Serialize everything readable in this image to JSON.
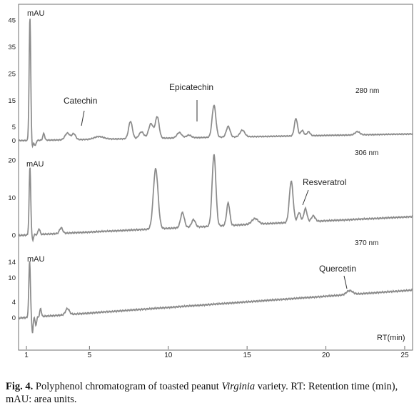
{
  "chart_data": {
    "type": "line",
    "x_axis": {
      "label": "RT(min)",
      "range": [
        0.5,
        25.5
      ],
      "ticks": [
        1,
        5,
        10,
        15,
        20,
        25
      ]
    },
    "colors": {
      "trace": "#8a8a8a",
      "text": "#222222",
      "frame": "#6f6f6f"
    },
    "panels": [
      {
        "wavelength": "280 nm",
        "ylabel": "mAU",
        "yticks": [
          0,
          5,
          15,
          25,
          35,
          45
        ],
        "ylim": [
          -3,
          50
        ],
        "baseline": {
          "start": 0,
          "end": 2.5
        },
        "peaks": [
          {
            "rt": 1.22,
            "h": 46,
            "w": 0.05
          },
          {
            "rt": 1.38,
            "h": -2.5,
            "w": 0.04
          },
          {
            "rt": 1.55,
            "h": -2,
            "w": 0.06
          },
          {
            "rt": 2.1,
            "h": 2.5,
            "w": 0.06
          },
          {
            "rt": 3.6,
            "h": 2.5,
            "w": 0.15
          },
          {
            "rt": 4.0,
            "h": 2.2,
            "w": 0.12
          },
          {
            "rt": 5.6,
            "h": 1,
            "w": 0.3
          },
          {
            "rt": 7.6,
            "h": 6.5,
            "w": 0.12
          },
          {
            "rt": 8.3,
            "h": 2.5,
            "w": 0.15
          },
          {
            "rt": 8.9,
            "h": 5.5,
            "w": 0.15
          },
          {
            "rt": 9.3,
            "h": 8,
            "w": 0.12
          },
          {
            "rt": 10.7,
            "h": 2,
            "w": 0.15
          },
          {
            "rt": 11.3,
            "h": 1,
            "w": 0.15
          },
          {
            "rt": 12.9,
            "h": 12,
            "w": 0.12
          },
          {
            "rt": 13.8,
            "h": 4,
            "w": 0.12
          },
          {
            "rt": 14.7,
            "h": 2.5,
            "w": 0.15
          },
          {
            "rt": 18.1,
            "h": 6.5,
            "w": 0.1
          },
          {
            "rt": 18.5,
            "h": 2,
            "w": 0.1
          },
          {
            "rt": 18.9,
            "h": 1.5,
            "w": 0.1
          },
          {
            "rt": 22.0,
            "h": 1.2,
            "w": 0.15
          }
        ],
        "annotations": [
          {
            "label": "Catechin",
            "rt": 4.0
          },
          {
            "label": "Epicatechin",
            "rt": 11.9
          }
        ]
      },
      {
        "wavelength": "306 nm",
        "ylabel": "mAU",
        "yticks": [
          0,
          10,
          20
        ],
        "ylim": [
          -2,
          22
        ],
        "baseline": {
          "start": 0,
          "end": 5
        },
        "peaks": [
          {
            "rt": 1.22,
            "h": 18,
            "w": 0.05
          },
          {
            "rt": 1.4,
            "h": -1.5,
            "w": 0.04
          },
          {
            "rt": 1.8,
            "h": 1.5,
            "w": 0.06
          },
          {
            "rt": 3.2,
            "h": 1.5,
            "w": 0.1
          },
          {
            "rt": 9.2,
            "h": 16,
            "w": 0.15
          },
          {
            "rt": 10.9,
            "h": 4,
            "w": 0.12
          },
          {
            "rt": 11.6,
            "h": 2,
            "w": 0.12
          },
          {
            "rt": 12.9,
            "h": 19,
            "w": 0.12
          },
          {
            "rt": 13.8,
            "h": 6,
            "w": 0.1
          },
          {
            "rt": 15.5,
            "h": 1.5,
            "w": 0.2
          },
          {
            "rt": 17.8,
            "h": 11,
            "w": 0.12
          },
          {
            "rt": 18.3,
            "h": 2.5,
            "w": 0.1
          },
          {
            "rt": 18.7,
            "h": 3.5,
            "w": 0.1
          },
          {
            "rt": 19.2,
            "h": 1.5,
            "w": 0.12
          }
        ],
        "annotations": [
          {
            "label": "Resveratrol",
            "rt": 18.7
          }
        ]
      },
      {
        "wavelength": "370 nm",
        "ylabel": "mAU",
        "yticks": [
          0,
          4,
          10,
          14
        ],
        "ylim": [
          -3,
          17
        ],
        "baseline": {
          "start": 0,
          "end": 7
        },
        "peaks": [
          {
            "rt": 1.2,
            "h": 14,
            "w": 0.05
          },
          {
            "rt": 1.38,
            "h": -4,
            "w": 0.04
          },
          {
            "rt": 1.6,
            "h": -2,
            "w": 0.05
          },
          {
            "rt": 1.9,
            "h": 2,
            "w": 0.05
          },
          {
            "rt": 3.6,
            "h": 1.5,
            "w": 0.12
          },
          {
            "rt": 21.5,
            "h": 1,
            "w": 0.2
          }
        ],
        "annotations": [
          {
            "label": "Quercetin",
            "rt": 21.4
          }
        ]
      }
    ]
  },
  "caption": {
    "fig_label": "Fig. 4.",
    "text_before": " Polyphenol chromatogram of toasted peanut ",
    "variety": "Virginia",
    "text_after": " variety. RT: Retention time (min), mAU: area units."
  }
}
